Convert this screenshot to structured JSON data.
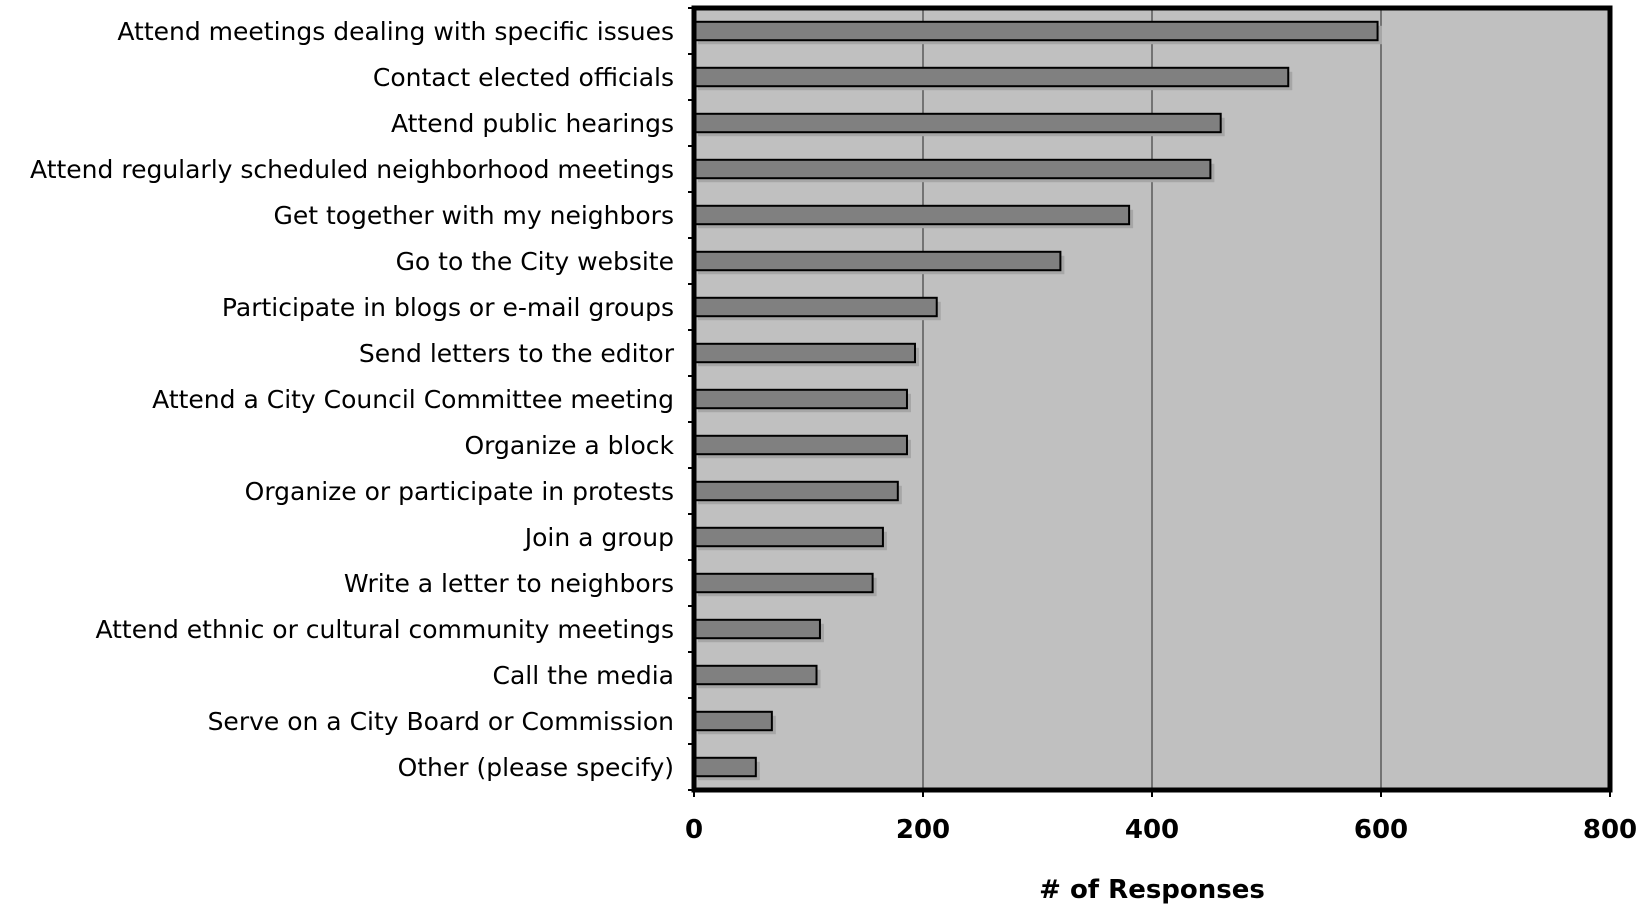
{
  "chart_data": {
    "type": "bar",
    "orientation": "horizontal",
    "categories": [
      "Attend meetings dealing with specific issues",
      "Contact elected officials",
      "Attend public hearings",
      "Attend regularly scheduled neighborhood meetings",
      "Get together with my neighbors",
      "Go to the City website",
      "Participate in blogs or e-mail groups",
      "Send letters to the editor",
      "Attend a City Council Committee meeting",
      "Organize a block",
      "Organize or participate in protests",
      "Join a group",
      "Write a letter to neighbors",
      "Attend ethnic or cultural community meetings",
      "Call the media",
      "Serve on a City Board or Commission",
      "Other (please specify)"
    ],
    "values": [
      597,
      519,
      460,
      451,
      380,
      320,
      212,
      193,
      186,
      186,
      178,
      165,
      156,
      110,
      107,
      68,
      54
    ],
    "xlabel": "# of Responses",
    "ylabel": "",
    "xlim": [
      0,
      800
    ],
    "xticks": [
      "0",
      "200",
      "400",
      "600",
      "800"
    ],
    "grid": true,
    "legend": "none",
    "colors": {
      "bar": "#808080",
      "bar_shadow": "#a6a6a6",
      "plot_bg": "#c0c0c0",
      "grid": "#404040",
      "frame": "#000000"
    }
  }
}
